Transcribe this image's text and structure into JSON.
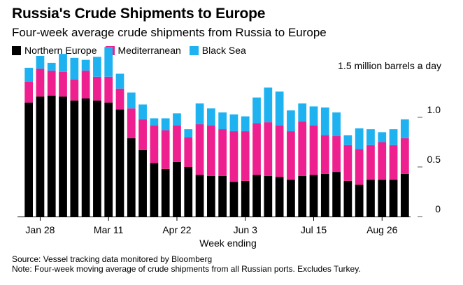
{
  "header": {
    "title": "Russia's Crude Shipments to Europe",
    "subtitle": "Four-week average crude shipments from Russia to Europe"
  },
  "footer": {
    "source": "Source: Vessel tracking data monitored by Bloomberg",
    "note": "Note: Four-week moving average of crude shipments from all Russian ports. Excludes Turkey."
  },
  "colors": {
    "northern_europe": "#000000",
    "mediterranean": "#ee1f8e",
    "black_sea": "#1fb2f0",
    "axis": "#000000",
    "grid": "#dddddd"
  },
  "chart_data": {
    "type": "bar",
    "stacked": true,
    "title": "Russia's Crude Shipments to Europe",
    "subtitle": "Four-week average crude shipments from Russia to Europe",
    "unit_label": "1.5 million barrels a day",
    "xlabel": "Week ending",
    "ylabel": "",
    "ylim": [
      0,
      1.5
    ],
    "yticks": [
      {
        "value": 0,
        "label": "0"
      },
      {
        "value": 0.5,
        "label": "0.5"
      },
      {
        "value": 1.0,
        "label": "1.0"
      },
      {
        "value": 1.5,
        "label": "1.5 million barrels a day"
      }
    ],
    "x_tick_labels": [
      {
        "index": 1,
        "label": "Jan 28"
      },
      {
        "index": 7,
        "label": "Mar 11"
      },
      {
        "index": 13,
        "label": "Apr 22"
      },
      {
        "index": 19,
        "label": "Jun 3"
      },
      {
        "index": 25,
        "label": "Jul 15"
      },
      {
        "index": 31,
        "label": "Aug 26"
      }
    ],
    "legend_placement": "top-left",
    "grid": false,
    "series": [
      {
        "name": "Northern Europe",
        "values": [
          1.15,
          1.21,
          1.22,
          1.21,
          1.17,
          1.19,
          1.17,
          1.15,
          1.08,
          0.79,
          0.67,
          0.54,
          0.48,
          0.55,
          0.5,
          0.42,
          0.41,
          0.41,
          0.35,
          0.36,
          0.42,
          0.41,
          0.4,
          0.37,
          0.41,
          0.42,
          0.43,
          0.45,
          0.36,
          0.32,
          0.37,
          0.37,
          0.37,
          0.43
        ]
      },
      {
        "name": "Mediterranean",
        "values": [
          0.21,
          0.28,
          0.25,
          0.25,
          0.21,
          0.28,
          0.24,
          0.26,
          0.21,
          0.3,
          0.31,
          0.38,
          0.39,
          0.37,
          0.3,
          0.51,
          0.51,
          0.47,
          0.51,
          0.5,
          0.52,
          0.54,
          0.52,
          0.49,
          0.55,
          0.5,
          0.39,
          0.36,
          0.36,
          0.36,
          0.35,
          0.38,
          0.35,
          0.36
        ]
      },
      {
        "name": "Black Sea",
        "values": [
          0.14,
          0.13,
          0.08,
          0.18,
          0.22,
          0.11,
          0.2,
          0.3,
          0.15,
          0.16,
          0.15,
          0.07,
          0.12,
          0.12,
          0.08,
          0.21,
          0.17,
          0.17,
          0.17,
          0.15,
          0.26,
          0.35,
          0.34,
          0.21,
          0.18,
          0.19,
          0.28,
          0.24,
          0.1,
          0.21,
          0.16,
          0.1,
          0.16,
          0.19
        ]
      }
    ]
  }
}
